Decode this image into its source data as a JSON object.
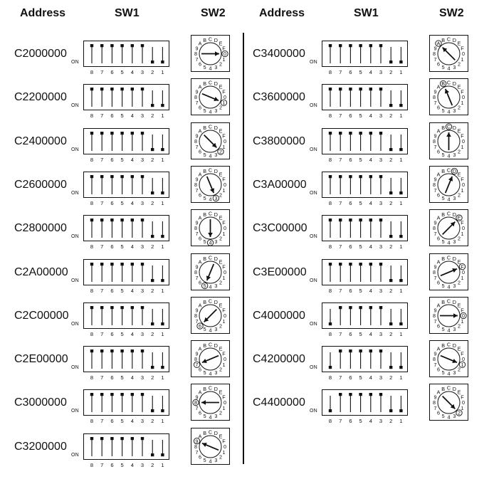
{
  "headers": {
    "left": {
      "address": "Address",
      "sw1": "SW1",
      "sw2": "SW2"
    },
    "right": {
      "address": "Address",
      "sw1": "SW1",
      "sw2": "SW2"
    }
  },
  "on_label": "ON",
  "dip_positions": [
    "8",
    "7",
    "6",
    "5",
    "4",
    "3",
    "2",
    "1"
  ],
  "dial_labels": [
    "0",
    "1",
    "2",
    "3",
    "4",
    "5",
    "6",
    "7",
    "8",
    "9",
    "A",
    "B",
    "C",
    "D",
    "E",
    "F"
  ],
  "legend_meaning": {
    "dip_values": "one entry per switch position, in printed order 8..1; 1 = lever up, 0 = lever down",
    "dial": "index into dial_labels; the circled label the arrow points to"
  },
  "columns": [
    {
      "name": "left",
      "rows": [
        {
          "address": "C2000000",
          "dip": [
            1,
            1,
            1,
            1,
            1,
            1,
            0,
            0
          ],
          "dial": 0
        },
        {
          "address": "C2200000",
          "dip": [
            1,
            1,
            1,
            1,
            1,
            1,
            0,
            0
          ],
          "dial": 1
        },
        {
          "address": "C2400000",
          "dip": [
            1,
            1,
            1,
            1,
            1,
            1,
            0,
            0
          ],
          "dial": 2
        },
        {
          "address": "C2600000",
          "dip": [
            1,
            1,
            1,
            1,
            1,
            1,
            0,
            0
          ],
          "dial": 3
        },
        {
          "address": "C2800000",
          "dip": [
            1,
            1,
            1,
            1,
            1,
            1,
            0,
            0
          ],
          "dial": 4
        },
        {
          "address": "C2A00000",
          "dip": [
            1,
            1,
            1,
            1,
            1,
            1,
            0,
            0
          ],
          "dial": 5
        },
        {
          "address": "C2C00000",
          "dip": [
            1,
            1,
            1,
            1,
            1,
            1,
            0,
            0
          ],
          "dial": 6
        },
        {
          "address": "C2E00000",
          "dip": [
            1,
            1,
            1,
            1,
            1,
            1,
            0,
            0
          ],
          "dial": 7
        },
        {
          "address": "C3000000",
          "dip": [
            1,
            1,
            1,
            1,
            1,
            1,
            0,
            0
          ],
          "dial": 8
        },
        {
          "address": "C3200000",
          "dip": [
            1,
            1,
            1,
            1,
            1,
            1,
            0,
            0
          ],
          "dial": 9
        }
      ]
    },
    {
      "name": "right",
      "rows": [
        {
          "address": "C3400000",
          "dip": [
            1,
            1,
            1,
            1,
            1,
            1,
            0,
            0
          ],
          "dial": 10
        },
        {
          "address": "C3600000",
          "dip": [
            1,
            1,
            1,
            1,
            1,
            1,
            0,
            0
          ],
          "dial": 11
        },
        {
          "address": "C3800000",
          "dip": [
            1,
            1,
            1,
            1,
            1,
            1,
            0,
            0
          ],
          "dial": 12
        },
        {
          "address": "C3A00000",
          "dip": [
            1,
            1,
            1,
            1,
            1,
            1,
            0,
            0
          ],
          "dial": 13
        },
        {
          "address": "C3C00000",
          "dip": [
            1,
            1,
            1,
            1,
            1,
            1,
            0,
            0
          ],
          "dial": 14
        },
        {
          "address": "C3E00000",
          "dip": [
            1,
            1,
            1,
            1,
            1,
            1,
            0,
            0
          ],
          "dial": 15
        },
        {
          "address": "C4000000",
          "dip": [
            0,
            1,
            1,
            1,
            1,
            1,
            0,
            0
          ],
          "dial": 0
        },
        {
          "address": "C4200000",
          "dip": [
            0,
            1,
            1,
            1,
            1,
            1,
            0,
            0
          ],
          "dial": 1
        },
        {
          "address": "C4400000",
          "dip": [
            0,
            1,
            1,
            1,
            1,
            1,
            0,
            0
          ],
          "dial": 2
        }
      ]
    }
  ]
}
